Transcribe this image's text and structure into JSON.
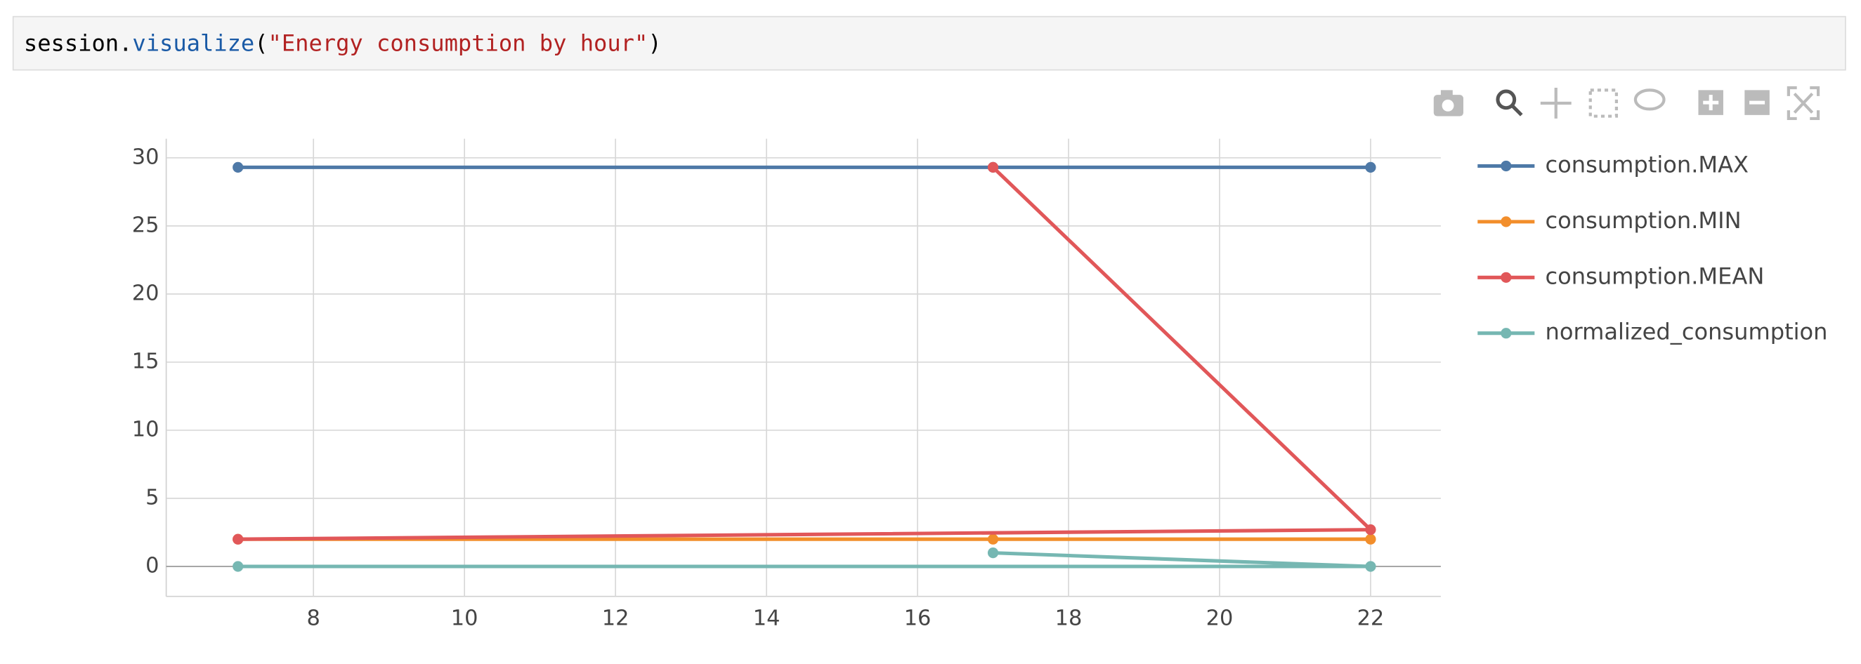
{
  "code_cell": {
    "tokens": [
      "session.",
      "visualize",
      "(",
      "\"Energy consumption by hour\"",
      ")"
    ]
  },
  "chart_data": {
    "type": "line",
    "x": [
      7,
      22,
      17
    ],
    "series": [
      {
        "name": "consumption.MAX",
        "color": "#4e79a7",
        "values": [
          29.3,
          29.3,
          29.3
        ]
      },
      {
        "name": "consumption.MIN",
        "color": "#f28e2b",
        "values": [
          2,
          2,
          2
        ]
      },
      {
        "name": "consumption.MEAN",
        "color": "#e15759",
        "values": [
          2,
          2.7,
          29.3
        ]
      },
      {
        "name": "normalized_consumption",
        "color": "#76b7b2",
        "values": [
          0,
          0,
          1
        ]
      }
    ],
    "xlim": [
      6.05,
      22.93
    ],
    "xticks": [
      8,
      10,
      12,
      14,
      16,
      18,
      20,
      22
    ],
    "ylim": [
      -2.2,
      31.4
    ],
    "yticks": [
      0,
      5,
      10,
      15,
      20,
      25,
      30
    ],
    "grid": true,
    "legend": "right"
  }
}
